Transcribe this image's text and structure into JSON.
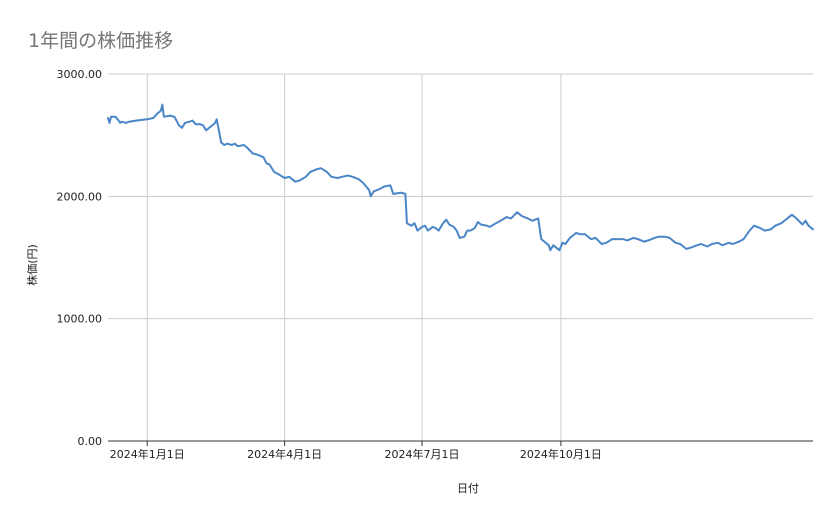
{
  "chart_data": {
    "type": "line",
    "title": "1年間の株価推移",
    "xlabel": "日付",
    "ylabel": "株価(円)",
    "ylim": [
      0,
      3000
    ],
    "yticks": [
      "0.00",
      "1000.00",
      "2000.00",
      "3000.00"
    ],
    "xtick_labels": [
      "2024年1月1日",
      "2024年4月1日",
      "2024年7月1日",
      "2024年10月1日"
    ],
    "grid": true,
    "legend": "none",
    "series": [
      {
        "color": "#4a86c8",
        "points": [
          [
            "2023-12-06",
            2640
          ],
          [
            "2023-12-07",
            2600
          ],
          [
            "2023-12-08",
            2650
          ],
          [
            "2023-12-11",
            2650
          ],
          [
            "2023-12-13",
            2620
          ],
          [
            "2023-12-14",
            2600
          ],
          [
            "2023-12-15",
            2610
          ],
          [
            "2023-12-18",
            2600
          ],
          [
            "2023-12-20",
            2610
          ],
          [
            "2023-12-25",
            2620
          ],
          [
            "2024-01-01",
            2630
          ],
          [
            "2024-01-05",
            2640
          ],
          [
            "2024-01-08",
            2680
          ],
          [
            "2024-01-10",
            2700
          ],
          [
            "2024-01-11",
            2750
          ],
          [
            "2024-01-12",
            2650
          ],
          [
            "2024-01-16",
            2660
          ],
          [
            "2024-01-19",
            2650
          ],
          [
            "2024-01-22",
            2580
          ],
          [
            "2024-01-24",
            2560
          ],
          [
            "2024-01-26",
            2600
          ],
          [
            "2024-01-29",
            2610
          ],
          [
            "2024-01-31",
            2620
          ],
          [
            "2024-02-02",
            2590
          ],
          [
            "2024-02-05",
            2590
          ],
          [
            "2024-02-07",
            2580
          ],
          [
            "2024-02-09",
            2540
          ],
          [
            "2024-02-12",
            2570
          ],
          [
            "2024-02-15",
            2600
          ],
          [
            "2024-02-16",
            2630
          ],
          [
            "2024-02-19",
            2440
          ],
          [
            "2024-02-21",
            2420
          ],
          [
            "2024-02-23",
            2430
          ],
          [
            "2024-02-26",
            2420
          ],
          [
            "2024-02-28",
            2430
          ],
          [
            "2024-03-01",
            2410
          ],
          [
            "2024-03-05",
            2420
          ],
          [
            "2024-03-07",
            2400
          ],
          [
            "2024-03-11",
            2350
          ],
          [
            "2024-03-14",
            2340
          ],
          [
            "2024-03-18",
            2320
          ],
          [
            "2024-03-20",
            2270
          ],
          [
            "2024-03-22",
            2260
          ],
          [
            "2024-03-25",
            2200
          ],
          [
            "2024-03-28",
            2180
          ],
          [
            "2024-04-01",
            2150
          ],
          [
            "2024-04-04",
            2160
          ],
          [
            "2024-04-08",
            2120
          ],
          [
            "2024-04-11",
            2130
          ],
          [
            "2024-04-15",
            2160
          ],
          [
            "2024-04-18",
            2200
          ],
          [
            "2024-04-22",
            2220
          ],
          [
            "2024-04-25",
            2230
          ],
          [
            "2024-04-29",
            2200
          ],
          [
            "2024-05-02",
            2160
          ],
          [
            "2024-05-06",
            2150
          ],
          [
            "2024-05-09",
            2160
          ],
          [
            "2024-05-13",
            2170
          ],
          [
            "2024-05-16",
            2160
          ],
          [
            "2024-05-20",
            2140
          ],
          [
            "2024-05-23",
            2110
          ],
          [
            "2024-05-27",
            2050
          ],
          [
            "2024-05-28",
            2000
          ],
          [
            "2024-05-30",
            2040
          ],
          [
            "2024-06-03",
            2060
          ],
          [
            "2024-06-06",
            2080
          ],
          [
            "2024-06-10",
            2090
          ],
          [
            "2024-06-12",
            2020
          ],
          [
            "2024-06-17",
            2030
          ],
          [
            "2024-06-20",
            2020
          ],
          [
            "2024-06-21",
            1780
          ],
          [
            "2024-06-24",
            1760
          ],
          [
            "2024-06-26",
            1780
          ],
          [
            "2024-06-28",
            1720
          ],
          [
            "2024-07-01",
            1750
          ],
          [
            "2024-07-03",
            1760
          ],
          [
            "2024-07-05",
            1720
          ],
          [
            "2024-07-08",
            1750
          ],
          [
            "2024-07-10",
            1740
          ],
          [
            "2024-07-12",
            1720
          ],
          [
            "2024-07-15",
            1780
          ],
          [
            "2024-07-17",
            1810
          ],
          [
            "2024-07-19",
            1770
          ],
          [
            "2024-07-22",
            1750
          ],
          [
            "2024-07-24",
            1720
          ],
          [
            "2024-07-26",
            1660
          ],
          [
            "2024-07-29",
            1670
          ],
          [
            "2024-07-31",
            1720
          ],
          [
            "2024-08-02",
            1720
          ],
          [
            "2024-08-05",
            1740
          ],
          [
            "2024-08-07",
            1790
          ],
          [
            "2024-08-09",
            1770
          ],
          [
            "2024-08-13",
            1760
          ],
          [
            "2024-08-15",
            1750
          ],
          [
            "2024-08-19",
            1780
          ],
          [
            "2024-08-22",
            1800
          ],
          [
            "2024-08-26",
            1830
          ],
          [
            "2024-08-29",
            1820
          ],
          [
            "2024-09-02",
            1870
          ],
          [
            "2024-09-05",
            1840
          ],
          [
            "2024-09-09",
            1820
          ],
          [
            "2024-09-12",
            1800
          ],
          [
            "2024-09-16",
            1820
          ],
          [
            "2024-09-18",
            1650
          ],
          [
            "2024-09-20",
            1630
          ],
          [
            "2024-09-23",
            1600
          ],
          [
            "2024-09-24",
            1560
          ],
          [
            "2024-09-26",
            1600
          ],
          [
            "2024-09-30",
            1560
          ],
          [
            "2024-10-02",
            1620
          ],
          [
            "2024-10-04",
            1610
          ],
          [
            "2024-10-07",
            1660
          ],
          [
            "2024-10-09",
            1680
          ],
          [
            "2024-10-11",
            1700
          ],
          [
            "2024-10-14",
            1690
          ],
          [
            "2024-10-17",
            1690
          ],
          [
            "2024-10-21",
            1650
          ],
          [
            "2024-10-24",
            1660
          ],
          [
            "2024-10-28",
            1610
          ],
          [
            "2024-10-31",
            1620
          ],
          [
            "2024-11-04",
            1650
          ],
          [
            "2024-11-07",
            1650
          ],
          [
            "2024-11-11",
            1650
          ],
          [
            "2024-11-14",
            1640
          ],
          [
            "2024-11-18",
            1660
          ],
          [
            "2024-11-21",
            1650
          ],
          [
            "2024-11-25",
            1630
          ],
          [
            "2024-11-28",
            1640
          ],
          [
            "2024-12-02",
            1660
          ],
          [
            "2024-12-05",
            1670
          ],
          [
            "2024-12-09",
            1670
          ],
          [
            "2024-12-12",
            1660
          ],
          [
            "2024-12-16",
            1620
          ],
          [
            "2024-12-19",
            1610
          ],
          [
            "2024-12-23",
            1570
          ],
          [
            "2024-12-26",
            1580
          ],
          [
            "2024-12-30",
            1600
          ],
          [
            "2025-01-02",
            1610
          ],
          [
            "2025-01-06",
            1590
          ],
          [
            "2025-01-09",
            1610
          ],
          [
            "2025-01-13",
            1620
          ],
          [
            "2025-01-16",
            1600
          ],
          [
            "2025-01-20",
            1620
          ],
          [
            "2025-01-23",
            1610
          ],
          [
            "2025-01-27",
            1630
          ],
          [
            "2025-01-30",
            1650
          ],
          [
            "2025-02-03",
            1720
          ],
          [
            "2025-02-06",
            1760
          ],
          [
            "2025-02-10",
            1740
          ],
          [
            "2025-02-13",
            1720
          ],
          [
            "2025-02-17",
            1730
          ],
          [
            "2025-02-20",
            1760
          ],
          [
            "2025-02-24",
            1780
          ],
          [
            "2025-02-27",
            1810
          ],
          [
            "2025-03-03",
            1850
          ],
          [
            "2025-03-06",
            1820
          ],
          [
            "2025-03-10",
            1770
          ],
          [
            "2025-03-12",
            1800
          ],
          [
            "2025-03-14",
            1760
          ],
          [
            "2025-03-17",
            1730
          ]
        ]
      }
    ]
  }
}
